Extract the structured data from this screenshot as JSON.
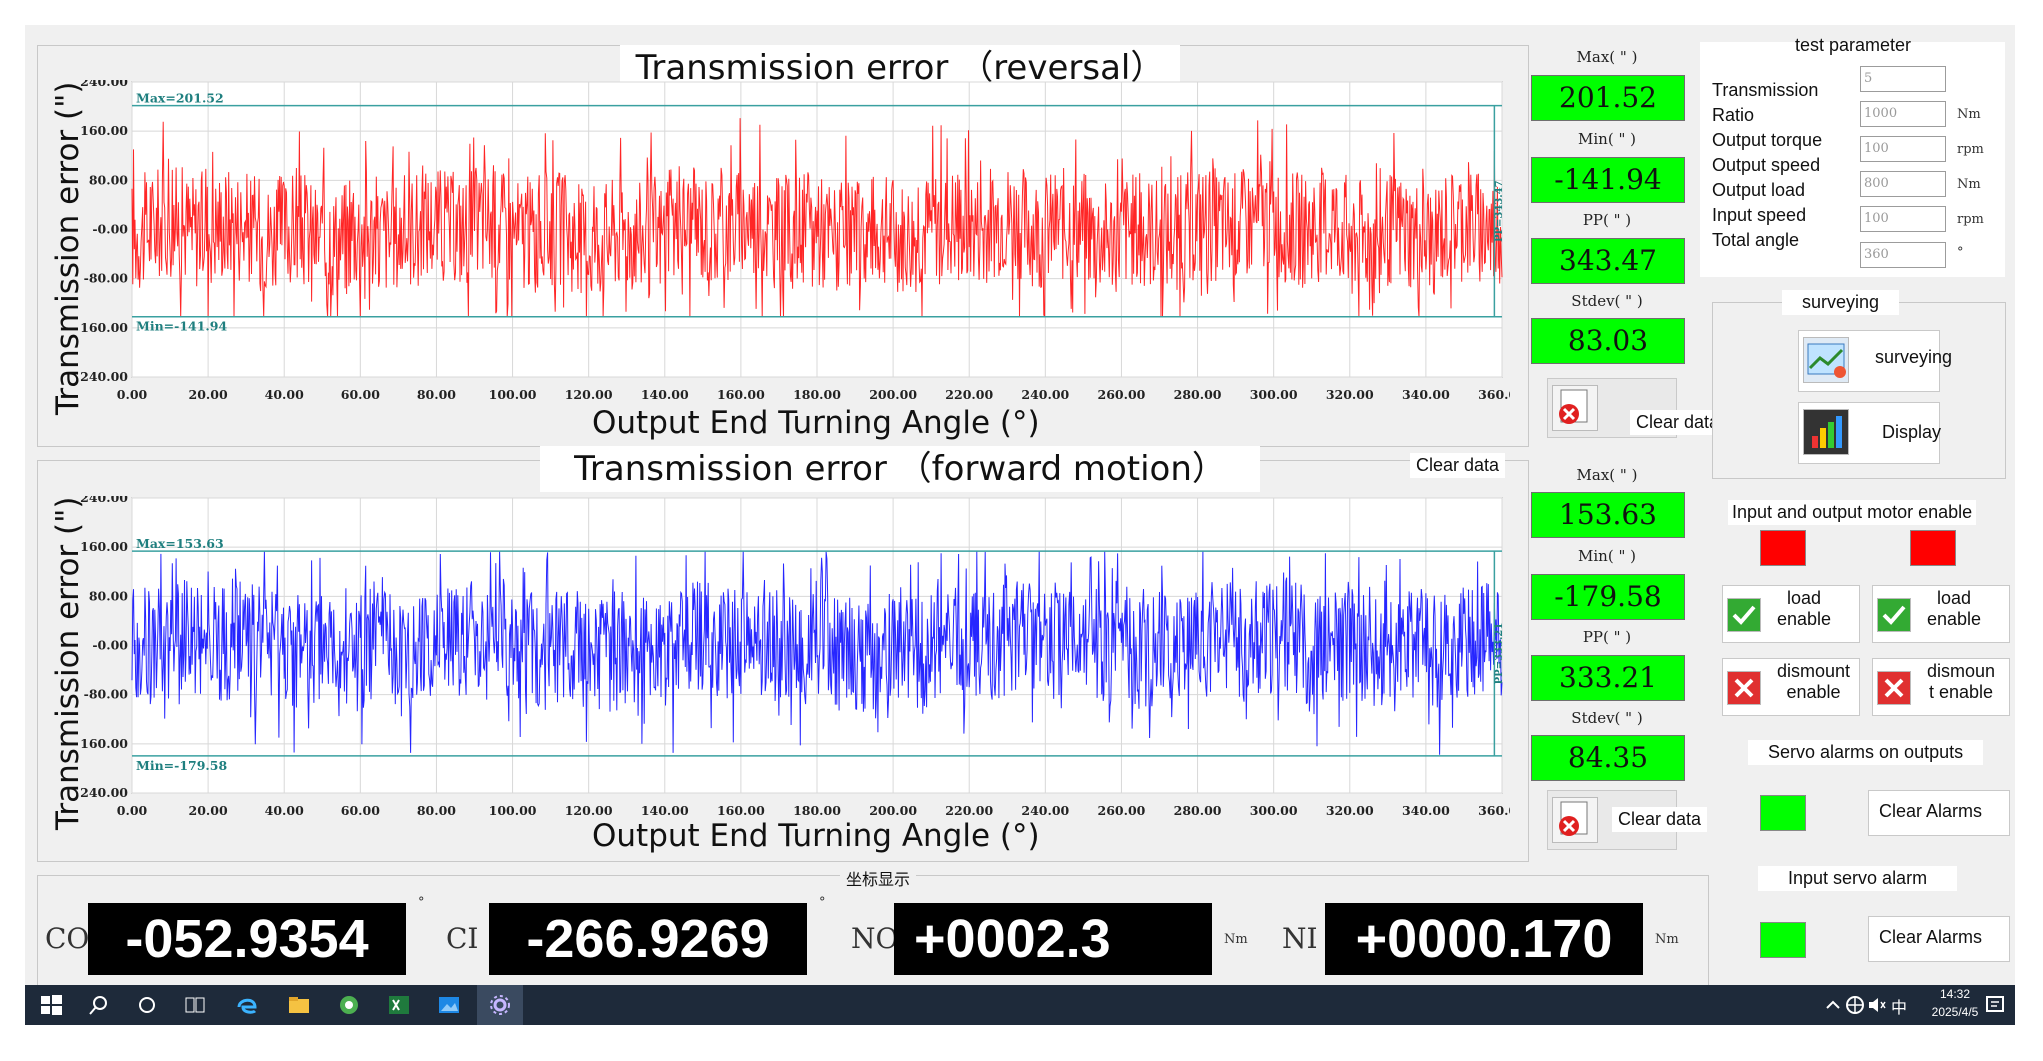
{
  "charts": [
    {
      "id": "reversal",
      "title": "Transmission error （reversal）",
      "ylabel": "Transmission error (\")",
      "xlabel": "Output End Turning Angle (°)",
      "yticks": [
        "240.00",
        "160.00",
        "80.00",
        "-0.00",
        "-80.00",
        "-160.00",
        "-240.00"
      ],
      "xticks": [
        "0.00",
        "20.00",
        "40.00",
        "60.00",
        "80.00",
        "100.00",
        "120.00",
        "140.00",
        "160.00",
        "180.00",
        "200.00",
        "220.00",
        "240.00",
        "260.00",
        "280.00",
        "300.00",
        "320.00",
        "340.00",
        "360.00"
      ],
      "max_marker": "Max=201.52",
      "min_marker": "Min=-141.94",
      "pp_marker": "PP=343.47",
      "color": "#ff0000",
      "stats": [
        {
          "label": "Max( \" )",
          "value": "201.52"
        },
        {
          "label": "Min( \" )",
          "value": "-141.94"
        },
        {
          "label": "PP( \" )",
          "value": "343.47"
        },
        {
          "label": "Stdev( \" )",
          "value": "83.03"
        }
      ],
      "clear_label": "Clear data",
      "clear_label_hidden": "Clear data"
    },
    {
      "id": "forward",
      "title": "Transmission error （forward motion）",
      "ylabel": "Transmission error (\")",
      "xlabel": "Output End Turning Angle (°)",
      "yticks": [
        "240.00",
        "160.00",
        "80.00",
        "-0.00",
        "-80.00",
        "-160.00",
        "-240.00"
      ],
      "xticks": [
        "0.00",
        "20.00",
        "40.00",
        "60.00",
        "80.00",
        "100.00",
        "120.00",
        "140.00",
        "160.00",
        "180.00",
        "200.00",
        "220.00",
        "240.00",
        "260.00",
        "280.00",
        "300.00",
        "320.00",
        "340.00",
        "360.00"
      ],
      "max_marker": "Max=153.63",
      "min_marker": "Min=-179.58",
      "pp_marker": "PP=333.21",
      "color": "#0000ff",
      "stats": [
        {
          "label": "Max( \" )",
          "value": "153.63"
        },
        {
          "label": "Min( \" )",
          "value": "-179.58"
        },
        {
          "label": "PP( \" )",
          "value": "333.21"
        },
        {
          "label": "Stdev( \" )",
          "value": "84.35"
        }
      ],
      "clear_label": "Clear data",
      "clear_label_top": "Clear data"
    }
  ],
  "chart_data": [
    {
      "type": "line",
      "title": "Transmission error （reversal）",
      "xlabel": "Output End Turning Angle (°)",
      "ylabel": "Transmission error (\")",
      "xlim": [
        0,
        360
      ],
      "ylim": [
        -240,
        240
      ],
      "series": [
        {
          "name": "",
          "summary": {
            "max": 201.52,
            "min": -141.94,
            "pp": 343.47,
            "stdev": 83.03
          }
        }
      ],
      "color": "#ff0000",
      "grid": true
    },
    {
      "type": "line",
      "title": "Transmission error （forward motion）",
      "xlabel": "Output End Turning Angle (°)",
      "ylabel": "Transmission error (\")",
      "xlim": [
        0,
        360
      ],
      "ylim": [
        -240,
        240
      ],
      "series": [
        {
          "name": "",
          "summary": {
            "max": 153.63,
            "min": -179.58,
            "pp": 333.21,
            "stdev": 84.35
          }
        }
      ],
      "color": "#0000ff",
      "grid": true
    }
  ],
  "test_parameter": {
    "header": "test parameter",
    "labels": [
      "Transmission",
      "Ratio",
      "Output torque",
      "Output speed",
      "Output load",
      "Input speed",
      "Total angle"
    ],
    "fields": [
      {
        "value": "5",
        "unit": ""
      },
      {
        "value": "1000",
        "unit": "Nm"
      },
      {
        "value": "100",
        "unit": "rpm"
      },
      {
        "value": "800",
        "unit": "Nm"
      },
      {
        "value": "100",
        "unit": "rpm"
      },
      {
        "value": "360",
        "unit": "°"
      }
    ]
  },
  "surveying": {
    "header": "surveying",
    "surveying_label": "surveying",
    "display_label": "Display"
  },
  "motor_enable": {
    "header": "Input and output motor enable",
    "load_label": "load\nenable",
    "dismount_left": "dismount\nenable",
    "dismount_right": "dismoun\nt enable"
  },
  "servo_out": {
    "header": "Servo alarms on outputs",
    "clear_label": "Clear Alarms"
  },
  "servo_in": {
    "header": "Input servo alarm",
    "clear_label": "Clear Alarms"
  },
  "coords": {
    "header": "坐标显示",
    "items": [
      {
        "label": "CO",
        "value": "-052.9354",
        "unit": "°"
      },
      {
        "label": "CI",
        "value": "-266.9269",
        "unit": "°"
      },
      {
        "label": "NO",
        "value": "+0002.3",
        "unit": "Nm"
      },
      {
        "label": "NI",
        "value": "+0000.170",
        "unit": "Nm"
      }
    ]
  },
  "taskbar": {
    "time": "14:32",
    "date": "2025/4/5",
    "ime": "中"
  }
}
